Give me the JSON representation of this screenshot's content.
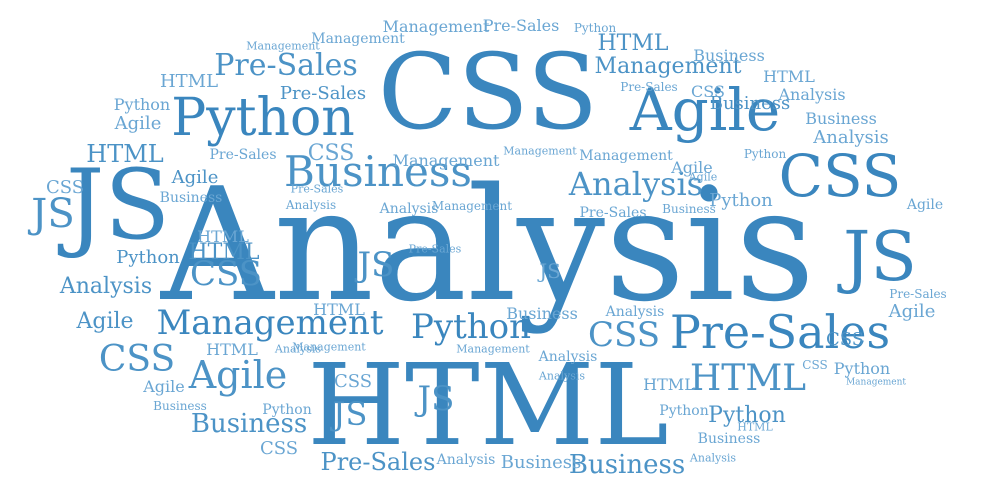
{
  "palette": {
    "dark": "#3a86be",
    "mid": "#4c93c6",
    "light": "#6aa6d3"
  },
  "words": [
    {
      "text": "Analysis",
      "shade": "dark"
    },
    {
      "text": "HTML",
      "shade": "dark"
    },
    {
      "text": "CSS",
      "shade": "dark"
    },
    {
      "text": "JS",
      "shade": "dark"
    },
    {
      "text": "JS",
      "shade": "dark"
    },
    {
      "text": "Agile",
      "shade": "dark"
    },
    {
      "text": "Python",
      "shade": "dark"
    },
    {
      "text": "Business",
      "shade": "mid"
    },
    {
      "text": "CSS",
      "shade": "dark"
    },
    {
      "text": "Pre-Sales",
      "shade": "dark"
    },
    {
      "text": "Management",
      "shade": "dark"
    },
    {
      "text": "Python",
      "shade": "dark"
    },
    {
      "text": "Analysis",
      "shade": "mid"
    },
    {
      "text": "Pre-Sales",
      "shade": "mid"
    },
    {
      "text": "HTML",
      "shade": "mid"
    },
    {
      "text": "Agile",
      "shade": "mid"
    },
    {
      "text": "CSS",
      "shade": "mid"
    },
    {
      "text": "CSS",
      "shade": "mid"
    },
    {
      "text": "JS",
      "shade": "mid"
    },
    {
      "text": "JS",
      "shade": "mid"
    },
    {
      "text": "JS",
      "shade": "mid"
    },
    {
      "text": "JS",
      "shade": "mid"
    },
    {
      "text": "Business",
      "shade": "mid"
    },
    {
      "text": "Business",
      "shade": "mid"
    },
    {
      "text": "Pre-Sales",
      "shade": "mid"
    },
    {
      "text": "Management",
      "shade": "mid"
    },
    {
      "text": "Python",
      "shade": "mid"
    },
    {
      "text": "CSS",
      "shade": "mid"
    },
    {
      "text": "HTML",
      "shade": "mid"
    },
    {
      "text": "HTML",
      "shade": "mid"
    },
    {
      "text": "HTML",
      "shade": "mid"
    },
    {
      "text": "Analysis",
      "shade": "mid"
    },
    {
      "text": "Agile",
      "shade": "mid"
    },
    {
      "text": "Agile",
      "shade": "mid"
    },
    {
      "text": "CSS",
      "shade": "mid"
    },
    {
      "text": "Business",
      "shade": "mid"
    },
    {
      "text": "Python",
      "shade": "mid"
    },
    {
      "text": "Pre-Sales",
      "shade": "mid"
    },
    {
      "text": "Management",
      "shade": "light"
    },
    {
      "text": "Management",
      "shade": "light"
    },
    {
      "text": "Business",
      "shade": "light"
    },
    {
      "text": "Business",
      "shade": "light"
    },
    {
      "text": "Analysis",
      "shade": "light"
    },
    {
      "text": "Analysis",
      "shade": "light"
    },
    {
      "text": "Agile",
      "shade": "light"
    },
    {
      "text": "Agile",
      "shade": "light"
    },
    {
      "text": "Agile",
      "shade": "light"
    },
    {
      "text": "Agile",
      "shade": "light"
    },
    {
      "text": "Python",
      "shade": "light"
    },
    {
      "text": "Python",
      "shade": "light"
    },
    {
      "text": "Python",
      "shade": "light"
    },
    {
      "text": "Python",
      "shade": "light"
    },
    {
      "text": "HTML",
      "shade": "light"
    },
    {
      "text": "HTML",
      "shade": "light"
    },
    {
      "text": "HTML",
      "shade": "light"
    },
    {
      "text": "HTML",
      "shade": "light"
    },
    {
      "text": "HTML",
      "shade": "light"
    },
    {
      "text": "HTML",
      "shade": "light"
    },
    {
      "text": "CSS",
      "shade": "light"
    },
    {
      "text": "CSS",
      "shade": "light"
    },
    {
      "text": "CSS",
      "shade": "light"
    },
    {
      "text": "CSS",
      "shade": "light"
    },
    {
      "text": "CSS",
      "shade": "light"
    },
    {
      "text": "JS",
      "shade": "light"
    },
    {
      "text": "Pre-Sales",
      "shade": "light"
    },
    {
      "text": "Pre-Sales",
      "shade": "light"
    },
    {
      "text": "Pre-Sales",
      "shade": "light"
    },
    {
      "text": "Pre-Sales",
      "shade": "light"
    },
    {
      "text": "Pre-Sales",
      "shade": "light"
    },
    {
      "text": "Pre-Sales",
      "shade": "light"
    },
    {
      "text": "Management",
      "shade": "light"
    },
    {
      "text": "Management",
      "shade": "light"
    },
    {
      "text": "Management",
      "shade": "light"
    },
    {
      "text": "Management",
      "shade": "light"
    },
    {
      "text": "Management",
      "shade": "light"
    },
    {
      "text": "Management",
      "shade": "light"
    },
    {
      "text": "Management",
      "shade": "light"
    },
    {
      "text": "Management",
      "shade": "light"
    },
    {
      "text": "Business",
      "shade": "light"
    },
    {
      "text": "Business",
      "shade": "light"
    },
    {
      "text": "Business",
      "shade": "light"
    },
    {
      "text": "Business",
      "shade": "light"
    },
    {
      "text": "Business",
      "shade": "light"
    },
    {
      "text": "Business",
      "shade": "light"
    },
    {
      "text": "Analysis",
      "shade": "light"
    },
    {
      "text": "Analysis",
      "shade": "light"
    },
    {
      "text": "Analysis",
      "shade": "light"
    },
    {
      "text": "Analysis",
      "shade": "light"
    },
    {
      "text": "Analysis",
      "shade": "light"
    },
    {
      "text": "Analysis",
      "shade": "light"
    },
    {
      "text": "Analysis",
      "shade": "light"
    },
    {
      "text": "Analysis",
      "shade": "light"
    },
    {
      "text": "Python",
      "shade": "light"
    },
    {
      "text": "Python",
      "shade": "light"
    },
    {
      "text": "Python",
      "shade": "light"
    },
    {
      "text": "Agile",
      "shade": "light"
    },
    {
      "text": "Agile",
      "shade": "light"
    },
    {
      "text": "Pre-Sales",
      "shade": "light"
    },
    {
      "text": "HTML",
      "shade": "light"
    },
    {
      "text": "CSS",
      "shade": "light"
    }
  ]
}
